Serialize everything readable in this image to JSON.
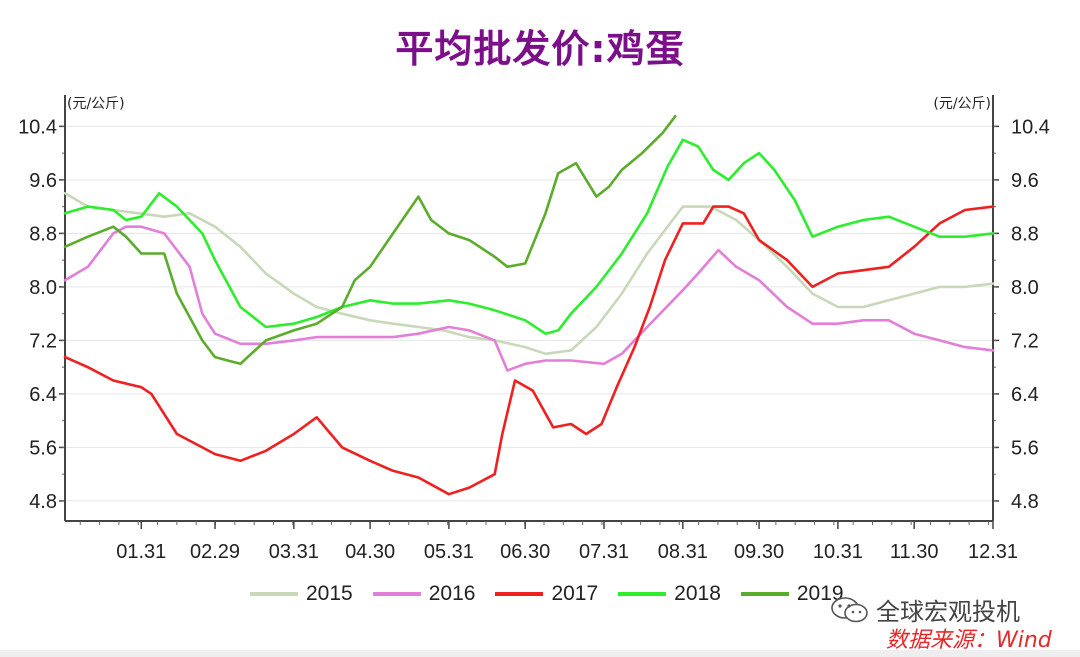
{
  "chart_data": {
    "type": "line",
    "title": "平均批发价:鸡蛋",
    "unit_left": "(元/公斤)",
    "unit_right": "(元/公斤)",
    "ylim": [
      4.5,
      10.6
    ],
    "yticks": [
      "4.8",
      "5.6",
      "6.4",
      "7.2",
      "8.0",
      "8.8",
      "9.6",
      "10.4"
    ],
    "x_ticks": [
      "01.31",
      "02.29",
      "03.31",
      "04.30",
      "05.31",
      "06.30",
      "07.31",
      "08.31",
      "09.30",
      "10.31",
      "11.30",
      "12.31"
    ],
    "x_tick_days": [
      31,
      60,
      91,
      121,
      152,
      182,
      213,
      244,
      274,
      305,
      335,
      366
    ],
    "xlim": [
      1,
      366
    ],
    "grid": true,
    "legend_position": "bottom",
    "series": [
      {
        "name": "2015",
        "color": "#c8d8b8",
        "x": [
          1,
          10,
          20,
          30,
          40,
          50,
          60,
          70,
          80,
          91,
          100,
          110,
          121,
          130,
          140,
          150,
          160,
          170,
          182,
          190,
          200,
          210,
          220,
          230,
          244,
          255,
          265,
          274,
          285,
          295,
          305,
          315,
          325,
          335,
          345,
          355,
          366
        ],
        "y": [
          9.4,
          9.2,
          9.15,
          9.1,
          9.05,
          9.1,
          8.9,
          8.6,
          8.2,
          7.9,
          7.7,
          7.6,
          7.5,
          7.45,
          7.4,
          7.35,
          7.25,
          7.2,
          7.1,
          7.0,
          7.05,
          7.4,
          7.9,
          8.5,
          9.2,
          9.2,
          9.0,
          8.7,
          8.3,
          7.9,
          7.7,
          7.7,
          7.8,
          7.9,
          8.0,
          8.0,
          8.05
        ]
      },
      {
        "name": "2016",
        "color": "#e27fd8",
        "x": [
          1,
          10,
          20,
          25,
          31,
          40,
          50,
          55,
          60,
          70,
          80,
          91,
          100,
          110,
          121,
          130,
          140,
          152,
          160,
          170,
          175,
          182,
          190,
          200,
          213,
          220,
          230,
          244,
          250,
          258,
          265,
          274,
          285,
          295,
          305,
          315,
          325,
          335,
          345,
          355,
          366
        ],
        "y": [
          8.1,
          8.3,
          8.8,
          8.9,
          8.9,
          8.8,
          8.3,
          7.6,
          7.3,
          7.15,
          7.15,
          7.2,
          7.25,
          7.25,
          7.25,
          7.25,
          7.3,
          7.4,
          7.35,
          7.2,
          6.75,
          6.85,
          6.9,
          6.9,
          6.85,
          7.0,
          7.4,
          7.95,
          8.2,
          8.55,
          8.3,
          8.1,
          7.7,
          7.45,
          7.45,
          7.5,
          7.5,
          7.3,
          7.2,
          7.1,
          7.05
        ]
      },
      {
        "name": "2017",
        "color": "#ee2020",
        "x": [
          1,
          10,
          20,
          31,
          35,
          45,
          55,
          60,
          70,
          80,
          91,
          100,
          110,
          121,
          130,
          140,
          152,
          160,
          170,
          173,
          178,
          185,
          193,
          200,
          206,
          212,
          218,
          225,
          231,
          237,
          244,
          252,
          256,
          262,
          268,
          274,
          285,
          295,
          305,
          315,
          325,
          335,
          345,
          355,
          366
        ],
        "y": [
          6.95,
          6.8,
          6.6,
          6.5,
          6.4,
          5.8,
          5.6,
          5.5,
          5.4,
          5.55,
          5.8,
          6.05,
          5.6,
          5.4,
          5.25,
          5.15,
          4.9,
          5.0,
          5.2,
          5.8,
          6.6,
          6.45,
          5.9,
          5.95,
          5.8,
          5.95,
          6.5,
          7.1,
          7.7,
          8.4,
          8.95,
          8.95,
          9.2,
          9.2,
          9.1,
          8.7,
          8.4,
          8.0,
          8.2,
          8.25,
          8.3,
          8.6,
          8.95,
          9.15,
          9.2
        ]
      },
      {
        "name": "2018",
        "color": "#2cee2c",
        "x": [
          1,
          10,
          20,
          25,
          31,
          38,
          45,
          55,
          60,
          70,
          80,
          91,
          100,
          110,
          121,
          130,
          140,
          152,
          160,
          170,
          182,
          190,
          195,
          200,
          210,
          220,
          230,
          238,
          244,
          250,
          256,
          262,
          268,
          274,
          280,
          288,
          295,
          305,
          315,
          325,
          335,
          345,
          355,
          366
        ],
        "y": [
          9.1,
          9.2,
          9.15,
          9.0,
          9.05,
          9.4,
          9.2,
          8.8,
          8.4,
          7.7,
          7.4,
          7.45,
          7.55,
          7.7,
          7.8,
          7.75,
          7.75,
          7.8,
          7.75,
          7.65,
          7.5,
          7.3,
          7.35,
          7.6,
          8.0,
          8.5,
          9.1,
          9.8,
          10.2,
          10.1,
          9.75,
          9.6,
          9.85,
          10.0,
          9.75,
          9.3,
          8.75,
          8.9,
          9.0,
          9.05,
          8.9,
          8.75,
          8.75,
          8.8
        ]
      },
      {
        "name": "2019",
        "color": "#5cac2c",
        "x": [
          1,
          10,
          20,
          25,
          31,
          40,
          45,
          55,
          60,
          65,
          70,
          80,
          91,
          100,
          110,
          115,
          121,
          130,
          140,
          145,
          152,
          160,
          170,
          175,
          182,
          190,
          195,
          202,
          210,
          215,
          220,
          228,
          236,
          241
        ],
        "y": [
          8.6,
          8.75,
          8.9,
          8.75,
          8.5,
          8.5,
          7.9,
          7.2,
          6.95,
          6.9,
          6.85,
          7.2,
          7.35,
          7.45,
          7.7,
          8.1,
          8.3,
          8.8,
          9.35,
          9.0,
          8.8,
          8.7,
          8.45,
          8.3,
          8.35,
          9.1,
          9.7,
          9.85,
          9.35,
          9.5,
          9.75,
          10.0,
          10.3,
          10.55
        ]
      }
    ]
  },
  "watermark": {
    "text": "全球宏观投机",
    "icon": "wechat-icon"
  },
  "source": "数据来源：Wind"
}
